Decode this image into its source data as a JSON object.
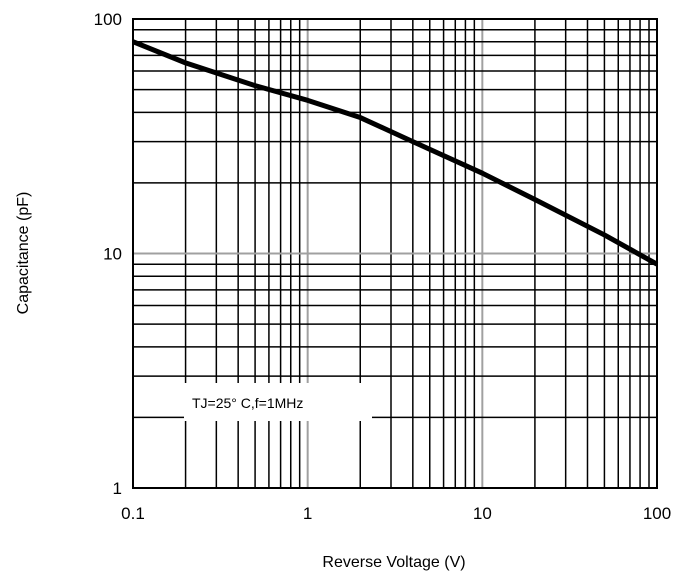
{
  "chart_data": {
    "type": "line",
    "title": "",
    "xlabel": "Reverse Voltage (V)",
    "ylabel": "Capacitance (pF)",
    "x_scale": "log",
    "y_scale": "log",
    "xlim": [
      0.1,
      100
    ],
    "ylim": [
      1,
      100
    ],
    "x_ticks": [
      0.1,
      1,
      10,
      100
    ],
    "x_tick_labels": [
      "0.1",
      "1",
      "10",
      "100"
    ],
    "y_ticks": [
      1,
      10,
      100
    ],
    "y_tick_labels": [
      "1",
      "10",
      "100"
    ],
    "grid": true,
    "annotation": "TJ=25° C,f=1MHz",
    "series": [
      {
        "x": [
          0.1,
          0.2,
          0.5,
          1,
          2,
          4,
          10,
          20,
          50,
          100
        ],
        "y": [
          80,
          65,
          52,
          45,
          38,
          30,
          22,
          17,
          12,
          9
        ]
      }
    ],
    "colors": {
      "line": "#000000",
      "grid_minor": "#000000",
      "grid_major": "#a0a0a0"
    }
  }
}
